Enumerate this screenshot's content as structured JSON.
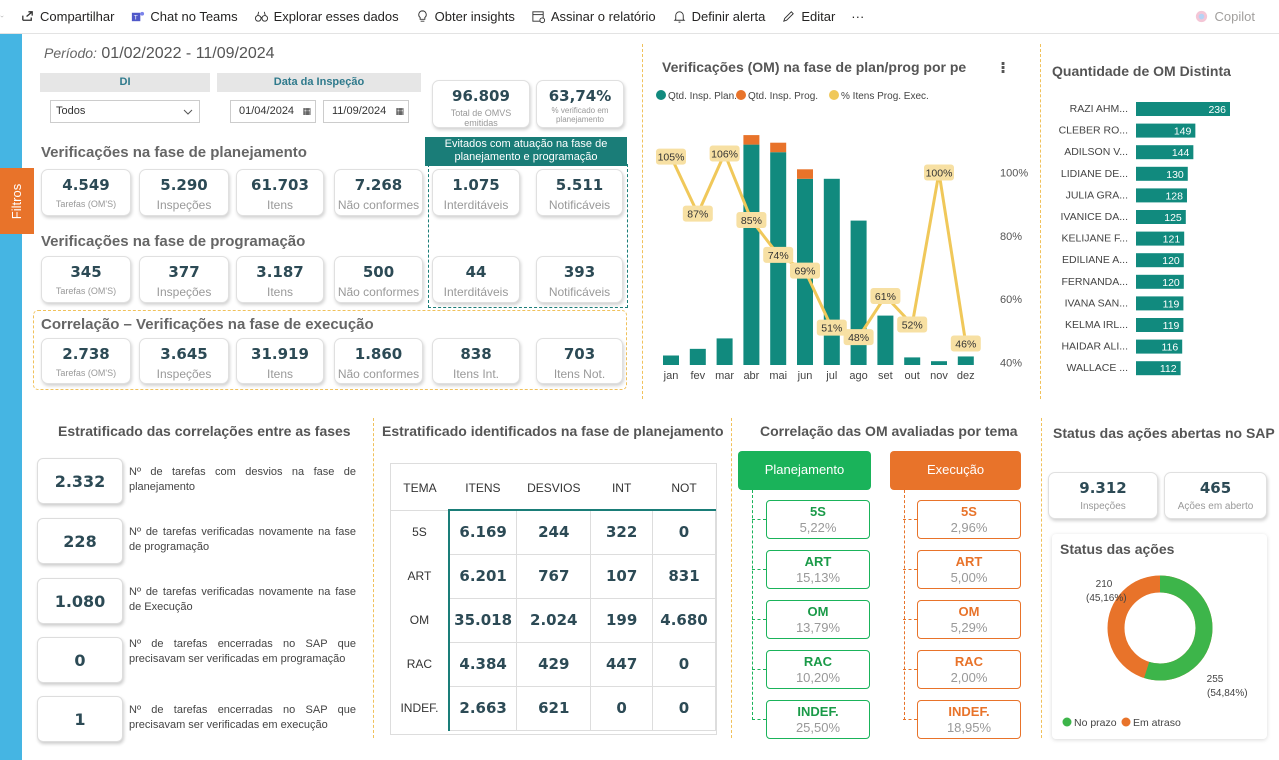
{
  "toolbar": {
    "items": [
      "Compartilhar",
      "Chat no Teams",
      "Explorar esses dados",
      "Obter insights",
      "Assinar o relatório",
      "Definir alerta",
      "Editar"
    ],
    "copilot": "Copilot"
  },
  "filtros": "Filtros",
  "periodo": {
    "label": "Período:",
    "value": "01/02/2022 - 11/09/2024"
  },
  "filters": {
    "di_label": "DI",
    "di_value": "Todos",
    "data_label": "Data da Inspeção",
    "date_from": "01/04/2024",
    "date_to": "11/09/2024"
  },
  "kpi_top": [
    {
      "value": "96.809",
      "label": "Total de OMVS emitidas"
    },
    {
      "value": "63,74%",
      "label": "% verificado em planejamento"
    }
  ],
  "evitados_header": "Evitados com atuação na fase de planejamento e programação",
  "planejamento": {
    "title": "Verificações na fase de planejamento",
    "cards": [
      {
        "value": "4.549",
        "label": "Tarefas (OM'S)"
      },
      {
        "value": "5.290",
        "label": "Inspeções"
      },
      {
        "value": "61.703",
        "label": "Itens"
      },
      {
        "value": "7.268",
        "label": "Não conformes"
      },
      {
        "value": "1.075",
        "label": "Interditáveis"
      },
      {
        "value": "5.511",
        "label": "Notificáveis"
      }
    ]
  },
  "programacao": {
    "title": "Verificações na fase de programação",
    "cards": [
      {
        "value": "345",
        "label": "Tarefas (OM'S)"
      },
      {
        "value": "377",
        "label": "Inspeções"
      },
      {
        "value": "3.187",
        "label": "Itens"
      },
      {
        "value": "500",
        "label": "Não conformes"
      },
      {
        "value": "44",
        "label": "Interditáveis"
      },
      {
        "value": "393",
        "label": "Notificáveis"
      }
    ]
  },
  "execucao": {
    "title": "Correlação – Verificações na fase de execução",
    "cards": [
      {
        "value": "2.738",
        "label": "Tarefas (OM'S)"
      },
      {
        "value": "3.645",
        "label": "Inspeções"
      },
      {
        "value": "31.919",
        "label": "Itens"
      },
      {
        "value": "1.860",
        "label": "Não conformes"
      },
      {
        "value": "838",
        "label": "Itens Int."
      },
      {
        "value": "703",
        "label": "Itens Not."
      }
    ]
  },
  "chart_title": "Verificações (OM) na fase de plan/prog por pe",
  "bar_title": "Quantidade de OM Distinta",
  "chart_data": [
    {
      "type": "bar",
      "title": "Verificações (OM) na fase de plan/prog por pe",
      "categories": [
        "jan",
        "fev",
        "mar",
        "abr",
        "mai",
        "jun",
        "jul",
        "ago",
        "set",
        "out",
        "nov",
        "dez"
      ],
      "series": [
        {
          "name": "Qtd. Insp. Plan.",
          "color": "#118a7e",
          "values": [
            10,
            17,
            28,
            232,
            224,
            196,
            196,
            152,
            52,
            8,
            4,
            9
          ]
        },
        {
          "name": "Qtd. Insp. Prog.",
          "color": "#e8732a",
          "values": [
            0,
            0,
            0,
            10,
            10,
            10,
            0,
            0,
            0,
            0,
            0,
            0
          ]
        },
        {
          "name": "% Itens Prog. Exec.",
          "color": "#f0c85a",
          "type": "line",
          "values": [
            105,
            87,
            106,
            85,
            74,
            69,
            51,
            48,
            61,
            52,
            100,
            46
          ]
        }
      ],
      "y2_ticks": [
        "100%",
        "80%",
        "60%",
        "40%"
      ],
      "y2lim": [
        37,
        115
      ],
      "legend": "top"
    },
    {
      "type": "bar",
      "orientation": "horizontal",
      "title": "Quantidade de OM Distinta",
      "categories": [
        "RAZI AHM...",
        "CLEBER RO...",
        "ADILSON V...",
        "LIDIANE DE...",
        "JULIA GRA...",
        "IVANICE DA...",
        "KELIJANE F...",
        "EDILIANE A...",
        "FERNANDA...",
        "IVANA SAN...",
        "KELMA IRL...",
        "HAIDAR ALI...",
        "WALLACE ..."
      ],
      "values": [
        236,
        149,
        144,
        130,
        128,
        125,
        121,
        120,
        120,
        119,
        119,
        116,
        112
      ],
      "color": "#118a7e"
    }
  ],
  "strat": {
    "title": "Estratificado das correlações entre as fases",
    "items": [
      {
        "value": "2.332",
        "text": "Nº de tarefas com desvios na fase de planejamento"
      },
      {
        "value": "228",
        "text": "Nº de tarefas verificadas novamente na fase de programação"
      },
      {
        "value": "1.080",
        "text": "Nº de tarefas verificadas novamente na fase de Execução"
      },
      {
        "value": "0",
        "text": "Nº de tarefas encerradas no SAP que precisavam ser verificadas em programação"
      },
      {
        "value": "1",
        "text": "Nº de tarefas encerradas no SAP que precisavam ser verificadas em execução"
      }
    ]
  },
  "tabela": {
    "title": "Estratificado identificados na fase de planejamento",
    "headers": [
      "TEMA",
      "ITENS",
      "DESVIOS",
      "INT",
      "NOT"
    ],
    "rows": [
      [
        "5S",
        "6.169",
        "244",
        "322",
        "0"
      ],
      [
        "ART",
        "6.201",
        "767",
        "107",
        "831"
      ],
      [
        "OM",
        "35.018",
        "2.024",
        "199",
        "4.680"
      ],
      [
        "RAC",
        "4.384",
        "429",
        "447",
        "0"
      ],
      [
        "INDEF.",
        "2.663",
        "621",
        "0",
        "0"
      ]
    ]
  },
  "tema": {
    "title": "Correlação das OM avaliadas por tema",
    "plan_label": "Planejamento",
    "exec_label": "Execução",
    "plan": [
      {
        "t": "5S",
        "p": "5,22%"
      },
      {
        "t": "ART",
        "p": "15,13%"
      },
      {
        "t": "OM",
        "p": "13,79%"
      },
      {
        "t": "RAC",
        "p": "10,20%"
      },
      {
        "t": "INDEF.",
        "p": "25,50%"
      }
    ],
    "exec": [
      {
        "t": "5S",
        "p": "2,96%"
      },
      {
        "t": "ART",
        "p": "5,00%"
      },
      {
        "t": "OM",
        "p": "5,29%"
      },
      {
        "t": "RAC",
        "p": "2,00%"
      },
      {
        "t": "INDEF.",
        "p": "18,95%"
      }
    ]
  },
  "status": {
    "title": "Status das ações abertas no SAP",
    "cards": [
      {
        "value": "9.312",
        "label": "Inspeções"
      },
      {
        "value": "465",
        "label": "Ações em aberto"
      }
    ],
    "donut_title": "Status das ações",
    "donut": {
      "em_atraso_value": "210",
      "em_atraso_pct": "(45,16%)",
      "no_prazo_value": "255",
      "no_prazo_pct": "(54,84%)",
      "legend_prazo": "No prazo",
      "legend_atraso": "Em atraso",
      "color_prazo": "#3db54a",
      "color_atraso": "#e8732a",
      "frac_prazo": 0.5484
    }
  }
}
